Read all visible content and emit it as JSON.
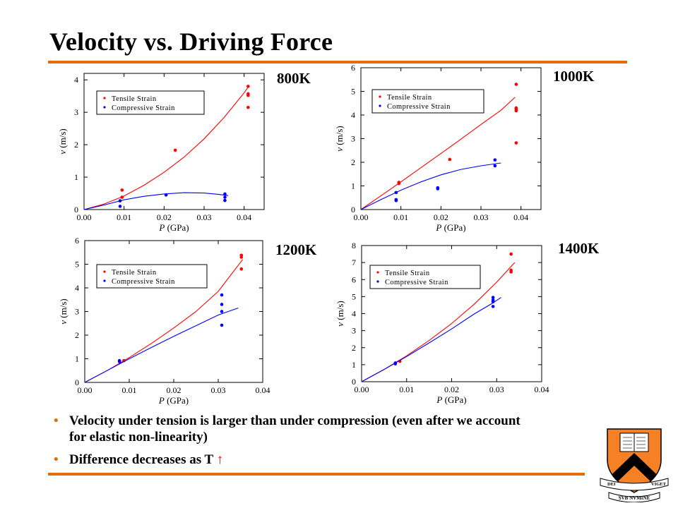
{
  "slide": {
    "title": "Velocity vs. Driving Force",
    "bullets": [
      {
        "text": "Velocity under tension is larger than under compression (even after we account for elastic non-linearity)",
        "arrow": ""
      },
      {
        "text": "Difference decreases as T ",
        "arrow": "↑"
      }
    ],
    "bullet_char": "•",
    "logo": {
      "banner_top": "DEI",
      "banner_top_right": "VIGET",
      "banner_bottom": "SVB NVMINE"
    }
  },
  "colors": {
    "accent": "#e46c0a",
    "tensile": "#ff0000",
    "compressive": "#0000ff",
    "arrow": "#ff0000"
  },
  "chart_data": [
    {
      "type": "scatter",
      "panel_label": "800K",
      "xlabel_var": "P",
      "xlabel_unit": " (GPa)",
      "ylabel_var": "v",
      "ylabel_unit": " (m/s)",
      "xlim": [
        0,
        0.045
      ],
      "ylim": [
        0,
        4.2
      ],
      "xticks": [
        0.0,
        0.01,
        0.02,
        0.03,
        0.04
      ],
      "xtick_labels": [
        "0.00",
        "0.01",
        "0.02",
        "0.03",
        "0.04"
      ],
      "yticks": [
        0,
        1,
        2,
        3,
        4
      ],
      "ytick_labels": [
        "0",
        "1",
        "2",
        "3",
        "4"
      ],
      "legend": {
        "position": "top-left"
      },
      "series": [
        {
          "name": "Tensile Strain",
          "color": "#ff0000",
          "points": [
            [
              0.0095,
              0.6
            ],
            [
              0.0095,
              0.38
            ],
            [
              0.0228,
              1.83
            ],
            [
              0.041,
              3.8
            ],
            [
              0.041,
              3.57
            ],
            [
              0.041,
              3.52
            ],
            [
              0.041,
              3.15
            ]
          ],
          "fit": [
            [
              0,
              0
            ],
            [
              0.005,
              0.17
            ],
            [
              0.01,
              0.42
            ],
            [
              0.015,
              0.75
            ],
            [
              0.02,
              1.15
            ],
            [
              0.025,
              1.62
            ],
            [
              0.03,
              2.18
            ],
            [
              0.035,
              2.84
            ],
            [
              0.04,
              3.6
            ],
            [
              0.041,
              3.78
            ]
          ]
        },
        {
          "name": "Compressive Strain",
          "color": "#0000ff",
          "points": [
            [
              0.009,
              0.27
            ],
            [
              0.009,
              0.1
            ],
            [
              0.0205,
              0.45
            ],
            [
              0.0352,
              0.48
            ],
            [
              0.0352,
              0.38
            ],
            [
              0.0352,
              0.28
            ]
          ],
          "fit": [
            [
              0,
              0
            ],
            [
              0.005,
              0.14
            ],
            [
              0.01,
              0.3
            ],
            [
              0.015,
              0.41
            ],
            [
              0.02,
              0.48
            ],
            [
              0.025,
              0.52
            ],
            [
              0.03,
              0.51
            ],
            [
              0.0335,
              0.47
            ],
            [
              0.036,
              0.43
            ]
          ]
        }
      ]
    },
    {
      "type": "scatter",
      "panel_label": "1000K",
      "xlabel_var": "P",
      "xlabel_unit": " (GPa)",
      "ylabel_var": "v",
      "ylabel_unit": " (m/s)",
      "xlim": [
        0,
        0.045
      ],
      "ylim": [
        0,
        6
      ],
      "xticks": [
        0.0,
        0.01,
        0.02,
        0.03,
        0.04
      ],
      "xtick_labels": [
        "0.00",
        "0.01",
        "0.02",
        "0.03",
        "0.04"
      ],
      "yticks": [
        0,
        1,
        2,
        3,
        4,
        5,
        6
      ],
      "ytick_labels": [
        "0",
        "1",
        "2",
        "3",
        "4",
        "5",
        "6"
      ],
      "legend": {
        "position": "top-left"
      },
      "series": [
        {
          "name": "Tensile Strain",
          "color": "#ff0000",
          "points": [
            [
              0.0095,
              1.15
            ],
            [
              0.0095,
              1.1
            ],
            [
              0.0222,
              2.12
            ],
            [
              0.0388,
              5.3
            ],
            [
              0.0388,
              4.3
            ],
            [
              0.0388,
              4.25
            ],
            [
              0.0388,
              4.18
            ],
            [
              0.0388,
              2.82
            ]
          ],
          "fit": [
            [
              0,
              0
            ],
            [
              0.005,
              0.58
            ],
            [
              0.01,
              1.17
            ],
            [
              0.015,
              1.77
            ],
            [
              0.02,
              2.37
            ],
            [
              0.025,
              2.98
            ],
            [
              0.03,
              3.6
            ],
            [
              0.035,
              4.2
            ],
            [
              0.0385,
              4.75
            ]
          ]
        },
        {
          "name": "Compressive Strain",
          "color": "#0000ff",
          "points": [
            [
              0.0088,
              0.72
            ],
            [
              0.0088,
              0.42
            ],
            [
              0.0088,
              0.38
            ],
            [
              0.0192,
              0.92
            ],
            [
              0.0192,
              0.88
            ],
            [
              0.0335,
              2.1
            ],
            [
              0.0335,
              1.85
            ]
          ],
          "fit": [
            [
              0,
              0
            ],
            [
              0.005,
              0.42
            ],
            [
              0.01,
              0.82
            ],
            [
              0.015,
              1.17
            ],
            [
              0.02,
              1.47
            ],
            [
              0.025,
              1.7
            ],
            [
              0.03,
              1.85
            ],
            [
              0.035,
              1.97
            ]
          ]
        }
      ]
    },
    {
      "type": "scatter",
      "panel_label": "1200K",
      "xlabel_var": "P",
      "xlabel_unit": " (GPa)",
      "ylabel_var": "v",
      "ylabel_unit": " (m/s)",
      "xlim": [
        0,
        0.04
      ],
      "ylim": [
        0,
        6
      ],
      "xticks": [
        0.0,
        0.01,
        0.02,
        0.03,
        0.04
      ],
      "xtick_labels": [
        "0.00",
        "0.01",
        "0.02",
        "0.03",
        "0.04"
      ],
      "yticks": [
        0,
        1,
        2,
        3,
        4,
        5,
        6
      ],
      "ytick_labels": [
        "0",
        "1",
        "2",
        "3",
        "4",
        "5",
        "6"
      ],
      "legend": {
        "position": "top-left"
      },
      "series": [
        {
          "name": "Tensile Strain",
          "color": "#ff0000",
          "points": [
            [
              0.0088,
              0.92
            ],
            [
              0.0352,
              5.38
            ],
            [
              0.0352,
              5.3
            ],
            [
              0.0352,
              4.8
            ]
          ],
          "fit": [
            [
              0,
              0
            ],
            [
              0.005,
              0.5
            ],
            [
              0.01,
              1.05
            ],
            [
              0.015,
              1.65
            ],
            [
              0.02,
              2.3
            ],
            [
              0.025,
              3.0
            ],
            [
              0.03,
              3.85
            ],
            [
              0.0355,
              5.2
            ]
          ]
        },
        {
          "name": "Compressive Strain",
          "color": "#0000ff",
          "points": [
            [
              0.0078,
              0.92
            ],
            [
              0.0078,
              0.88
            ],
            [
              0.0308,
              3.7
            ],
            [
              0.0308,
              3.3
            ],
            [
              0.0308,
              3.0
            ],
            [
              0.0308,
              2.42
            ]
          ],
          "fit": [
            [
              0,
              0
            ],
            [
              0.005,
              0.5
            ],
            [
              0.01,
              1.0
            ],
            [
              0.015,
              1.48
            ],
            [
              0.02,
              1.95
            ],
            [
              0.025,
              2.4
            ],
            [
              0.03,
              2.85
            ],
            [
              0.0345,
              3.15
            ]
          ]
        }
      ]
    },
    {
      "type": "scatter",
      "panel_label": "1400K",
      "xlabel_var": "P",
      "xlabel_unit": " (GPa)",
      "ylabel_var": "v",
      "ylabel_unit": " (m/s)",
      "xlim": [
        0,
        0.04
      ],
      "ylim": [
        0,
        8
      ],
      "xticks": [
        0.0,
        0.01,
        0.02,
        0.03,
        0.04
      ],
      "xtick_labels": [
        "0.00",
        "0.01",
        "0.02",
        "0.03",
        "0.04"
      ],
      "yticks": [
        0,
        1,
        2,
        3,
        4,
        5,
        6,
        7,
        8
      ],
      "ytick_labels": [
        "0",
        "1",
        "2",
        "3",
        "4",
        "5",
        "6",
        "7",
        "8"
      ],
      "legend": {
        "position": "top-left"
      },
      "series": [
        {
          "name": "Tensile Strain",
          "color": "#ff0000",
          "points": [
            [
              0.0085,
              1.2
            ],
            [
              0.0332,
              7.5
            ],
            [
              0.0332,
              6.55
            ],
            [
              0.0332,
              6.45
            ]
          ],
          "fit": [
            [
              0,
              0
            ],
            [
              0.005,
              0.72
            ],
            [
              0.01,
              1.52
            ],
            [
              0.015,
              2.42
            ],
            [
              0.02,
              3.42
            ],
            [
              0.025,
              4.55
            ],
            [
              0.03,
              5.85
            ],
            [
              0.034,
              7.0
            ]
          ]
        },
        {
          "name": "Compressive Strain",
          "color": "#0000ff",
          "points": [
            [
              0.0075,
              1.1
            ],
            [
              0.0075,
              1.05
            ],
            [
              0.0292,
              4.95
            ],
            [
              0.0292,
              4.8
            ],
            [
              0.0292,
              4.7
            ],
            [
              0.0292,
              4.42
            ]
          ],
          "fit": [
            [
              0,
              0
            ],
            [
              0.005,
              0.72
            ],
            [
              0.01,
              1.48
            ],
            [
              0.015,
              2.28
            ],
            [
              0.02,
              3.1
            ],
            [
              0.025,
              3.98
            ],
            [
              0.029,
              4.6
            ],
            [
              0.031,
              4.95
            ]
          ]
        }
      ]
    }
  ]
}
